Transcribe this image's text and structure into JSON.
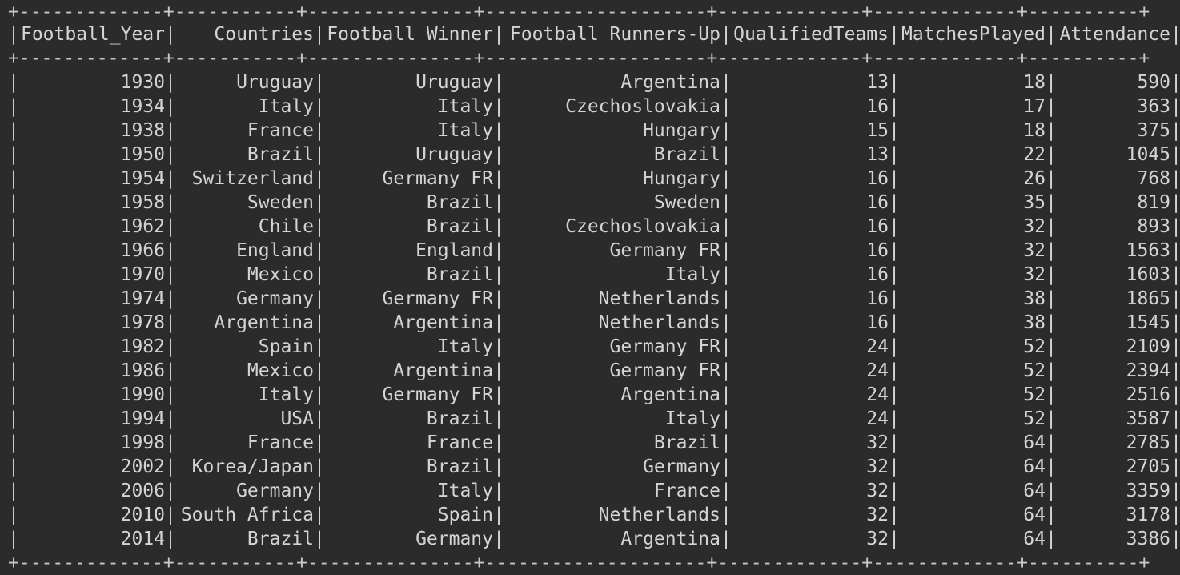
{
  "separator_line": "+-------------+-----------+---------------+--------------------+-------------+-------------+----------+",
  "columns": [
    "Football_Year",
    "Countries",
    "Football Winner",
    "Football Runners-Up",
    "QualifiedTeams",
    "MatchesPlayed",
    "Attendance"
  ],
  "rows": [
    [
      "1930",
      "Uruguay",
      "Uruguay",
      "Argentina",
      "13",
      "18",
      "590"
    ],
    [
      "1934",
      "Italy",
      "Italy",
      "Czechoslovakia",
      "16",
      "17",
      "363"
    ],
    [
      "1938",
      "France",
      "Italy",
      "Hungary",
      "15",
      "18",
      "375"
    ],
    [
      "1950",
      "Brazil",
      "Uruguay",
      "Brazil",
      "13",
      "22",
      "1045"
    ],
    [
      "1954",
      "Switzerland",
      "Germany FR",
      "Hungary",
      "16",
      "26",
      "768"
    ],
    [
      "1958",
      "Sweden",
      "Brazil",
      "Sweden",
      "16",
      "35",
      "819"
    ],
    [
      "1962",
      "Chile",
      "Brazil",
      "Czechoslovakia",
      "16",
      "32",
      "893"
    ],
    [
      "1966",
      "England",
      "England",
      "Germany FR",
      "16",
      "32",
      "1563"
    ],
    [
      "1970",
      "Mexico",
      "Brazil",
      "Italy",
      "16",
      "32",
      "1603"
    ],
    [
      "1974",
      "Germany",
      "Germany FR",
      "Netherlands",
      "16",
      "38",
      "1865"
    ],
    [
      "1978",
      "Argentina",
      "Argentina",
      "Netherlands",
      "16",
      "38",
      "1545"
    ],
    [
      "1982",
      "Spain",
      "Italy",
      "Germany FR",
      "24",
      "52",
      "2109"
    ],
    [
      "1986",
      "Mexico",
      "Argentina",
      "Germany FR",
      "24",
      "52",
      "2394"
    ],
    [
      "1990",
      "Italy",
      "Germany FR",
      "Argentina",
      "24",
      "52",
      "2516"
    ],
    [
      "1994",
      "USA",
      "Brazil",
      "Italy",
      "24",
      "52",
      "3587"
    ],
    [
      "1998",
      "France",
      "France",
      "Brazil",
      "32",
      "64",
      "2785"
    ],
    [
      "2002",
      "Korea/Japan",
      "Brazil",
      "Germany",
      "32",
      "64",
      "2705"
    ],
    [
      "2006",
      "Germany",
      "Italy",
      "France",
      "32",
      "64",
      "3359"
    ],
    [
      "2010",
      "South Africa",
      "Spain",
      "Netherlands",
      "32",
      "64",
      "3178"
    ],
    [
      "2014",
      "Brazil",
      "Germany",
      "Argentina",
      "32",
      "64",
      "3386"
    ]
  ],
  "colors": {
    "background": "#2b2b2b",
    "text": "#d4d4d4"
  }
}
